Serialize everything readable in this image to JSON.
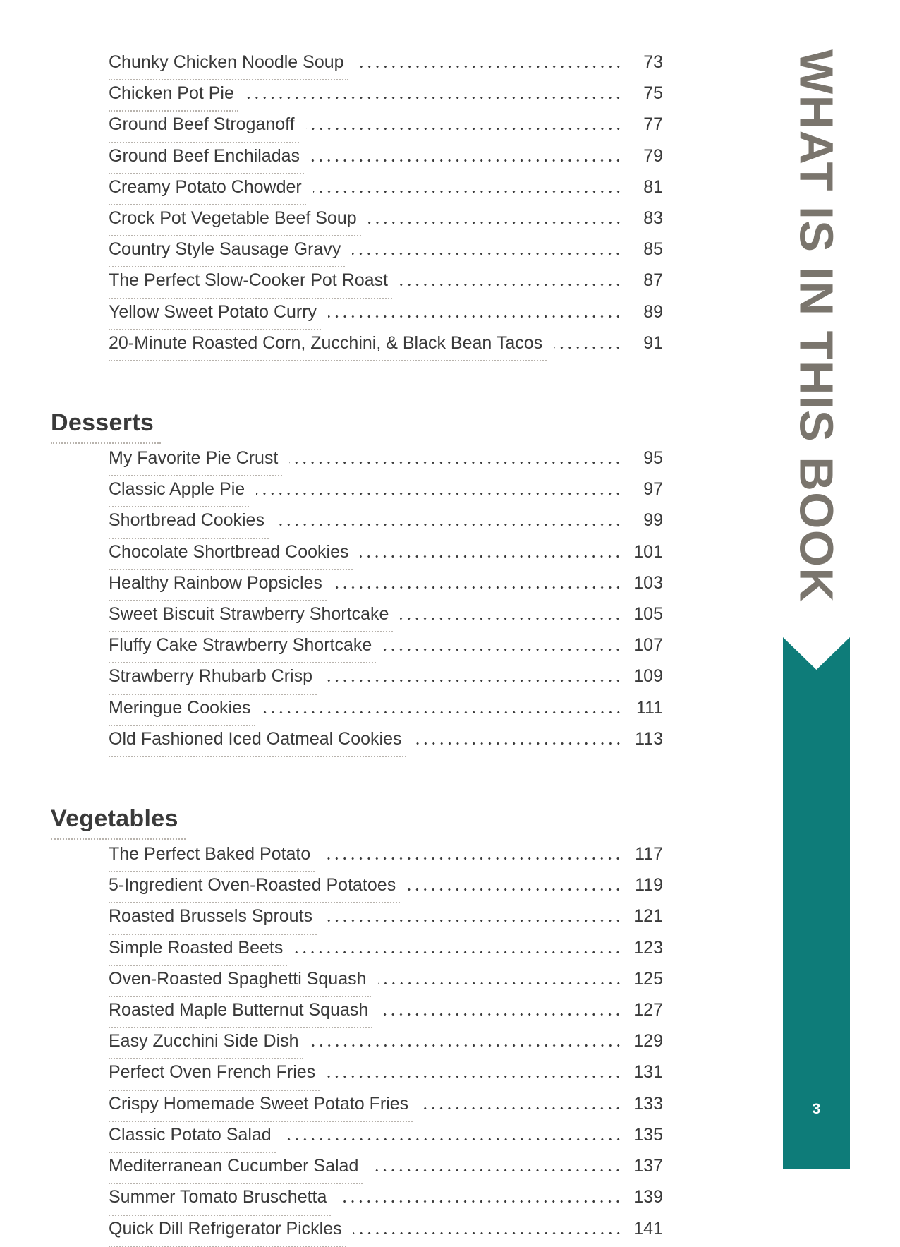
{
  "document": {
    "sections": [
      {
        "title": "",
        "entries": [
          {
            "label": "Chunky Chicken Noodle Soup",
            "page": "73"
          },
          {
            "label": "Chicken Pot Pie",
            "page": "75"
          },
          {
            "label": "Ground Beef Stroganoff",
            "page": "77"
          },
          {
            "label": "Ground Beef Enchiladas",
            "page": "79"
          },
          {
            "label": "Creamy Potato Chowder",
            "page": "81"
          },
          {
            "label": "Crock Pot Vegetable Beef Soup",
            "page": "83"
          },
          {
            "label": "Country Style Sausage Gravy",
            "page": "85"
          },
          {
            "label": "The Perfect Slow-Cooker Pot Roast",
            "page": "87"
          },
          {
            "label": "Yellow Sweet Potato Curry",
            "page": "89"
          },
          {
            "label": "20-Minute Roasted Corn, Zucchini, & Black Bean Tacos",
            "page": "91"
          }
        ]
      },
      {
        "title": "Desserts",
        "entries": [
          {
            "label": "My Favorite Pie Crust",
            "page": "95"
          },
          {
            "label": "Classic Apple Pie",
            "page": "97"
          },
          {
            "label": "Shortbread Cookies",
            "page": "99"
          },
          {
            "label": "Chocolate Shortbread Cookies",
            "page": "101"
          },
          {
            "label": "Healthy Rainbow Popsicles",
            "page": "103"
          },
          {
            "label": "Sweet Biscuit Strawberry Shortcake",
            "page": "105"
          },
          {
            "label": "Fluffy Cake Strawberry Shortcake",
            "page": "107"
          },
          {
            "label": "Strawberry Rhubarb Crisp",
            "page": "109"
          },
          {
            "label": "Meringue Cookies",
            "page": "111"
          },
          {
            "label": "Old Fashioned Iced Oatmeal Cookies",
            "page": "113"
          }
        ]
      },
      {
        "title": "Vegetables",
        "entries": [
          {
            "label": "The Perfect Baked Potato",
            "page": "117"
          },
          {
            "label": "5-Ingredient Oven-Roasted Potatoes",
            "page": "119"
          },
          {
            "label": "Roasted Brussels Sprouts",
            "page": "121"
          },
          {
            "label": "Simple Roasted Beets",
            "page": "123"
          },
          {
            "label": "Oven-Roasted Spaghetti Squash",
            "page": "125"
          },
          {
            "label": "Roasted Maple Butternut Squash",
            "page": "127"
          },
          {
            "label": "Easy Zucchini Side Dish",
            "page": "129"
          },
          {
            "label": "Perfect Oven French Fries",
            "page": "131"
          },
          {
            "label": "Crispy Homemade Sweet Potato Fries",
            "page": "133"
          },
          {
            "label": "Classic Potato Salad",
            "page": "135"
          },
          {
            "label": "Mediterranean Cucumber Salad",
            "page": "137"
          },
          {
            "label": "Summer Tomato Bruschetta",
            "page": "139"
          },
          {
            "label": "Quick Dill Refrigerator Pickles",
            "page": "141"
          }
        ]
      }
    ],
    "sidebar": {
      "vertical_label": "WHAT IS IN THIS BOOK",
      "page_number": "3"
    }
  },
  "colors": {
    "accent_teal": "#0e7c79",
    "sidebar_gray": "#7a756d",
    "text": "#3a3a3a",
    "underline": "#b8b3ad",
    "page_number_text": "#ffffff"
  }
}
